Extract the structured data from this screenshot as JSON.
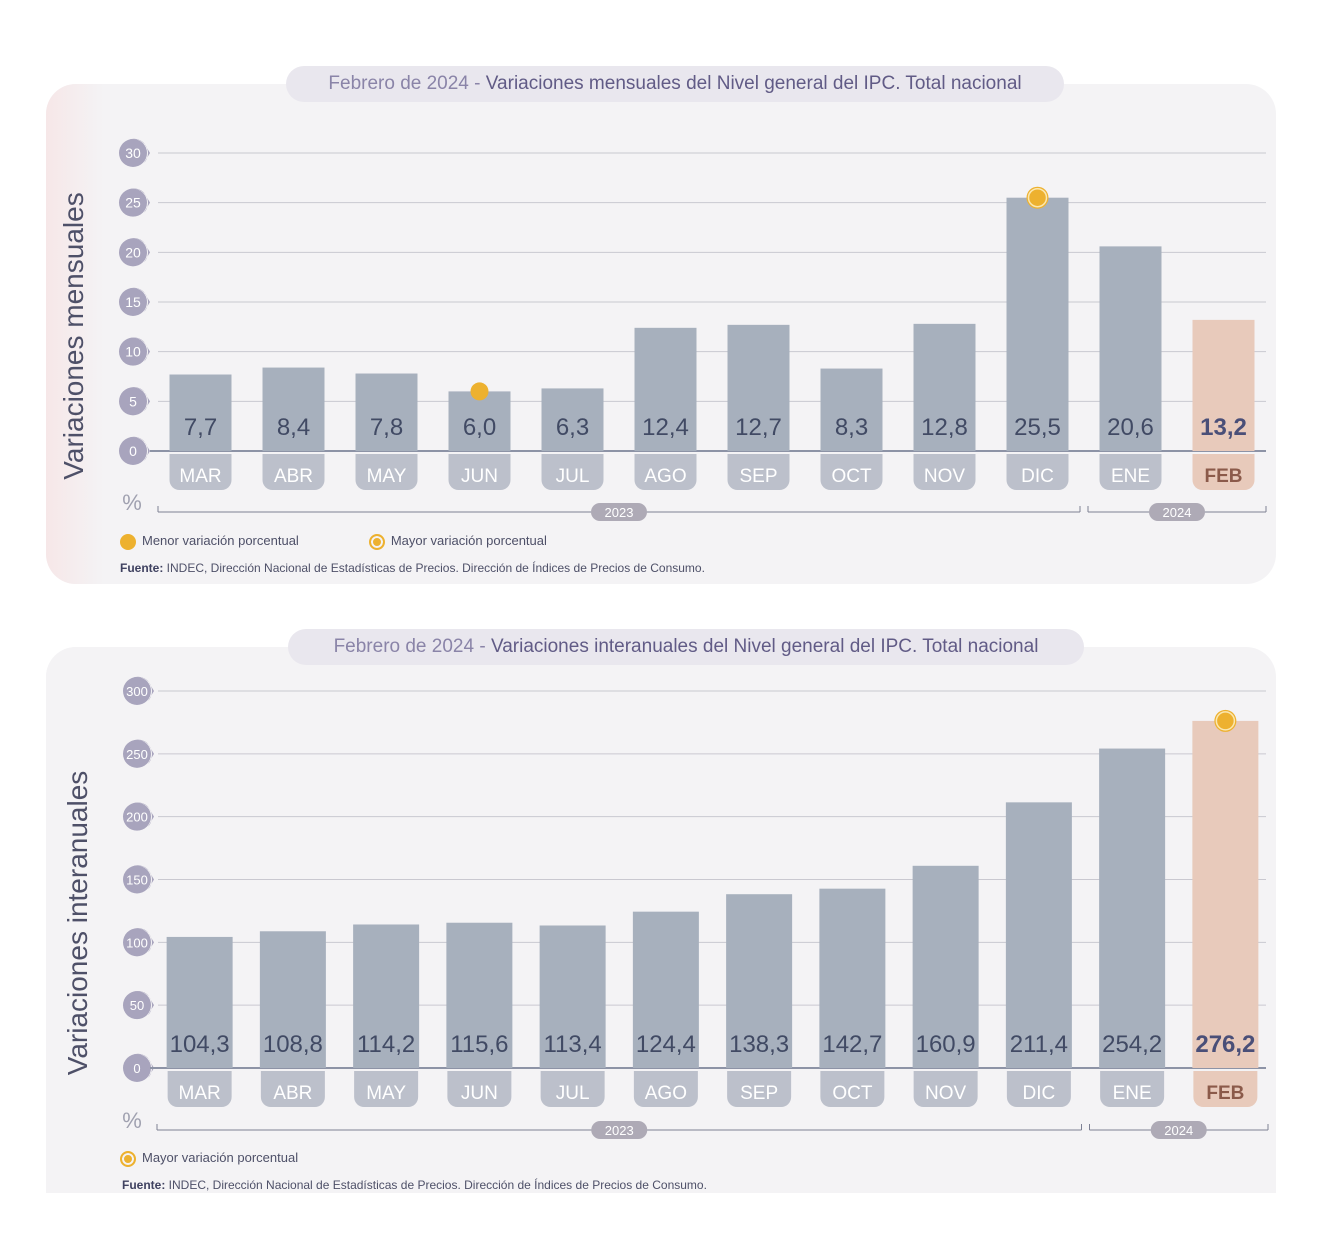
{
  "chart_data": [
    {
      "type": "bar",
      "title_lead": "Febrero de 2024",
      "title_sep": " - ",
      "title_main": "Variaciones mensuales del Nivel general del IPC. Total nacional",
      "ylabel": "Variaciones mensuales",
      "unit": "%",
      "ylim": [
        0,
        30
      ],
      "yticks": [
        "0",
        "5",
        "10",
        "15",
        "20",
        "25",
        "30"
      ],
      "categories": [
        "MAR",
        "ABR",
        "MAY",
        "JUN",
        "JUL",
        "AGO",
        "SEP",
        "OCT",
        "NOV",
        "DIC",
        "ENE",
        "FEB"
      ],
      "values": [
        7.7,
        8.4,
        7.8,
        6.0,
        6.3,
        12.4,
        12.7,
        8.3,
        12.8,
        25.5,
        20.6,
        13.2
      ],
      "value_labels": [
        "7,7",
        "8,4",
        "7,8",
        "6,0",
        "6,3",
        "12,4",
        "12,7",
        "8,3",
        "12,8",
        "25,5",
        "20,6",
        "13,2"
      ],
      "year_groups": [
        {
          "label": "2023",
          "from": 0,
          "to": 9
        },
        {
          "label": "2024",
          "from": 10,
          "to": 11
        }
      ],
      "highlight_index": 11,
      "min_marker_index": 3,
      "max_marker_index": 9,
      "legend": {
        "min": "Menor variación porcentual",
        "max": "Mayor variación porcentual"
      },
      "source_label": "Fuente:",
      "source_text": " INDEC, Dirección Nacional de Estadísticas de Precios. Dirección de Índices de Precios de Consumo."
    },
    {
      "type": "bar",
      "title_lead": "Febrero de 2024",
      "title_sep": " - ",
      "title_main": "Variaciones interanuales del Nivel general del IPC. Total nacional",
      "ylabel": "Variaciones interanuales",
      "unit": "%",
      "ylim": [
        0,
        300
      ],
      "yticks": [
        "0",
        "50",
        "100",
        "150",
        "200",
        "250",
        "300"
      ],
      "categories": [
        "MAR",
        "ABR",
        "MAY",
        "JUN",
        "JUL",
        "AGO",
        "SEP",
        "OCT",
        "NOV",
        "DIC",
        "ENE",
        "FEB"
      ],
      "values": [
        104.3,
        108.8,
        114.2,
        115.6,
        113.4,
        124.4,
        138.3,
        142.7,
        160.9,
        211.4,
        254.2,
        276.2
      ],
      "value_labels": [
        "104,3",
        "108,8",
        "114,2",
        "115,6",
        "113,4",
        "124,4",
        "138,3",
        "142,7",
        "160,9",
        "211,4",
        "254,2",
        "276,2"
      ],
      "year_groups": [
        {
          "label": "2023",
          "from": 0,
          "to": 9
        },
        {
          "label": "2024",
          "from": 10,
          "to": 11
        }
      ],
      "highlight_index": 11,
      "max_marker_index": 11,
      "legend": {
        "max": "Mayor variación porcentual"
      },
      "source_label": "Fuente:",
      "source_text": " INDEC, Dirección Nacional de Estadísticas de Precios. Dirección de Índices de Precios de Consumo."
    }
  ],
  "colors": {
    "bar": "#a7b0bd",
    "bar_highlight": "#e8cabb",
    "marker": "#edb12f",
    "tick_badge": "#a8a4bd",
    "month_tab": "#bcc0cb",
    "month_tab_highlight": "#e8cabb",
    "value_text": "#414a64",
    "value_text_highlight": "#4a4f78"
  }
}
